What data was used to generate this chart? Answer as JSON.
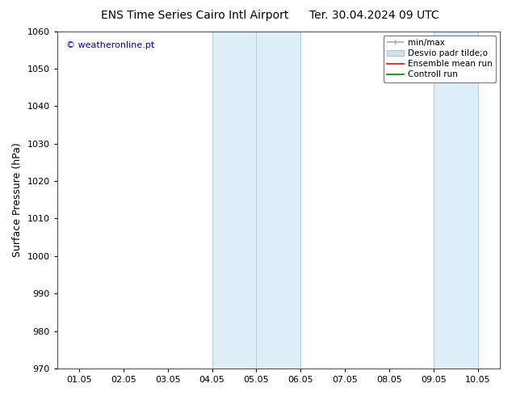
{
  "title_left": "ENS Time Series Cairo Intl Airport",
  "title_right": "Ter. 30.04.2024 09 UTC",
  "ylabel": "Surface Pressure (hPa)",
  "ylim": [
    970,
    1060
  ],
  "yticks": [
    970,
    980,
    990,
    1000,
    1010,
    1020,
    1030,
    1040,
    1050,
    1060
  ],
  "xlabel_ticks": [
    "01.05",
    "02.05",
    "03.05",
    "04.05",
    "05.05",
    "06.05",
    "07.05",
    "08.05",
    "09.05",
    "10.05"
  ],
  "x_positions": [
    0,
    1,
    2,
    3,
    4,
    5,
    6,
    7,
    8,
    9
  ],
  "watermark": "© weatheronline.pt",
  "watermark_color": "#0000cc",
  "shaded_band1_start": 3,
  "shaded_band1_end": 5,
  "shaded_band2_start": 8,
  "shaded_band2_end": 9,
  "shaded_color": "#ddeef8",
  "shaded_border_color": "#b0ccdd",
  "legend_label1": "min/max",
  "legend_label2": "Desvio padr tilde;o",
  "legend_label3": "Ensemble mean run",
  "legend_label4": "Controll run",
  "legend_color1": "#aaaaaa",
  "legend_color2": "#cce0f0",
  "legend_color3": "red",
  "legend_color4": "green",
  "background_color": "#ffffff",
  "axes_bg": "#ffffff",
  "title_fontsize": 10,
  "tick_fontsize": 8,
  "ylabel_fontsize": 9,
  "xlim_left": -0.5,
  "xlim_right": 9.5
}
